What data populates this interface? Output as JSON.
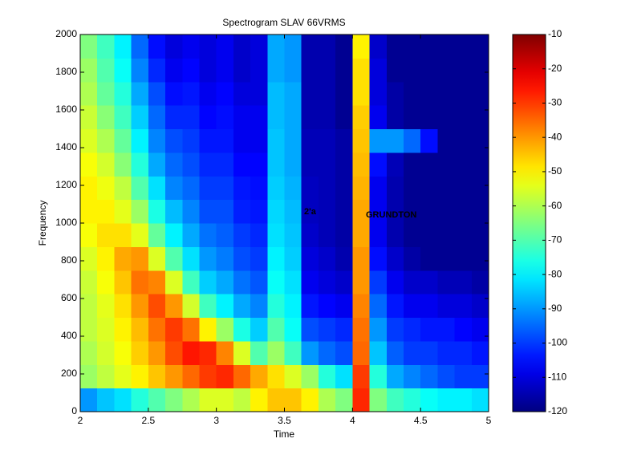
{
  "chart_data": {
    "type": "heatmap",
    "title": "Spectrogram SLAV 66VRMS",
    "x_label": "Time",
    "y_label": "Frequency",
    "annotations": [
      "2'a",
      "GRUNDTON"
    ],
    "x": [
      2.0625,
      2.1875,
      2.3125,
      2.4375,
      2.5625,
      2.6875,
      2.8125,
      2.9375,
      3.0625,
      3.1875,
      3.3125,
      3.4375,
      3.5625,
      3.6875,
      3.8125,
      3.9375,
      4.0625,
      4.1875,
      4.3125,
      4.4375,
      4.5625,
      4.6875,
      4.8125,
      4.9375
    ],
    "y": [
      62.5,
      187.5,
      312.5,
      437.5,
      562.5,
      687.5,
      812.5,
      937.5,
      1062.5,
      1187.5,
      1312.5,
      1437.5,
      1562.5,
      1687.5,
      1812.5,
      1937.5
    ],
    "values": [
      [
        -90,
        -85,
        -82,
        -75,
        -70,
        -65,
        -60,
        -55,
        -55,
        -58,
        -50,
        -45,
        -45,
        -50,
        -60,
        -65,
        -28,
        -65,
        -72,
        -75,
        -78,
        -80,
        -80,
        -82
      ],
      [
        -62,
        -58,
        -54,
        -50,
        -45,
        -40,
        -35,
        -30,
        -28,
        -35,
        -42,
        -48,
        -55,
        -62,
        -75,
        -82,
        -30,
        -75,
        -88,
        -92,
        -95,
        -98,
        -100,
        -100
      ],
      [
        -60,
        -56,
        -52,
        -46,
        -40,
        -32,
        -26,
        -28,
        -38,
        -55,
        -70,
        -62,
        -72,
        -90,
        -95,
        -98,
        -35,
        -85,
        -96,
        -100,
        -100,
        -102,
        -102,
        -104
      ],
      [
        -58,
        -55,
        -50,
        -44,
        -36,
        -30,
        -36,
        -50,
        -62,
        -76,
        -84,
        -70,
        -78,
        -98,
        -100,
        -102,
        -36,
        -90,
        -100,
        -102,
        -104,
        -104,
        -106,
        -108
      ],
      [
        -58,
        -54,
        -48,
        -40,
        -32,
        -40,
        -56,
        -72,
        -80,
        -88,
        -92,
        -75,
        -80,
        -104,
        -106,
        -108,
        -38,
        -95,
        -104,
        -108,
        -108,
        -110,
        -110,
        -112
      ],
      [
        -57,
        -52,
        -45,
        -36,
        -38,
        -55,
        -72,
        -84,
        -88,
        -94,
        -97,
        -78,
        -82,
        -108,
        -110,
        -112,
        -40,
        -100,
        -108,
        -112,
        -112,
        -114,
        -114,
        -116
      ],
      [
        -55,
        -50,
        -42,
        -40,
        -55,
        -70,
        -82,
        -90,
        -93,
        -98,
        -100,
        -80,
        -84,
        -110,
        -112,
        -115,
        -40,
        -105,
        -112,
        -116,
        -118,
        -118,
        -118,
        -118
      ],
      [
        -52,
        -48,
        -48,
        -54,
        -68,
        -80,
        -88,
        -94,
        -96,
        -100,
        -102,
        -82,
        -85,
        -112,
        -114,
        -116,
        -42,
        -108,
        -115,
        -118,
        -118,
        -118,
        -118,
        -118
      ],
      [
        -50,
        -50,
        -54,
        -62,
        -76,
        -86,
        -92,
        -98,
        -98,
        -103,
        -104,
        -83,
        -86,
        -113,
        -114,
        -116,
        -42,
        -108,
        -115,
        -118,
        -118,
        -118,
        -118,
        -118
      ],
      [
        -50,
        -53,
        -58,
        -70,
        -82,
        -92,
        -95,
        -100,
        -100,
        -104,
        -105,
        -84,
        -87,
        -113,
        -114,
        -116,
        -43,
        -108,
        -115,
        -118,
        -118,
        -118,
        -118,
        -118
      ],
      [
        -52,
        -56,
        -64,
        -75,
        -88,
        -95,
        -98,
        -102,
        -102,
        -106,
        -106,
        -85,
        -88,
        -114,
        -114,
        -116,
        -44,
        -105,
        -114,
        -118,
        -118,
        -118,
        -118,
        -118
      ],
      [
        -55,
        -60,
        -68,
        -80,
        -92,
        -98,
        -100,
        -104,
        -104,
        -108,
        -108,
        -85,
        -88,
        -114,
        -114,
        -116,
        -45,
        -90,
        -90,
        -95,
        -105,
        -118,
        -118,
        -118
      ],
      [
        -57,
        -64,
        -72,
        -84,
        -95,
        -102,
        -102,
        -106,
        -105,
        -108,
        -108,
        -86,
        -88,
        -115,
        -115,
        -118,
        -46,
        -108,
        -116,
        -118,
        -118,
        -118,
        -118,
        -118
      ],
      [
        -60,
        -68,
        -75,
        -88,
        -98,
        -105,
        -104,
        -108,
        -106,
        -110,
        -110,
        -86,
        -88,
        -115,
        -115,
        -118,
        -48,
        -110,
        -116,
        -118,
        -118,
        -118,
        -118,
        -118
      ],
      [
        -62,
        -70,
        -78,
        -92,
        -102,
        -108,
        -106,
        -110,
        -108,
        -112,
        -110,
        -88,
        -90,
        -115,
        -115,
        -118,
        -48,
        -110,
        -118,
        -118,
        -118,
        -118,
        -118,
        -118
      ],
      [
        -65,
        -72,
        -80,
        -95,
        -105,
        -110,
        -108,
        -110,
        -108,
        -112,
        -110,
        -88,
        -90,
        -115,
        -115,
        -118,
        -50,
        -112,
        -118,
        -118,
        -118,
        -118,
        -118,
        -118
      ]
    ],
    "xlim": [
      2,
      5
    ],
    "xticks": [
      2,
      2.5,
      3,
      3.5,
      4,
      4.5,
      5
    ],
    "ylim": [
      0,
      2000
    ],
    "yticks": [
      0,
      200,
      400,
      600,
      800,
      1000,
      1200,
      1400,
      1600,
      1800,
      2000
    ],
    "clim": [
      -120,
      -10
    ],
    "cticks": [
      -10,
      -20,
      -30,
      -40,
      -50,
      -60,
      -70,
      -80,
      -90,
      -100,
      -110,
      -120
    ],
    "colormap": "jet"
  }
}
